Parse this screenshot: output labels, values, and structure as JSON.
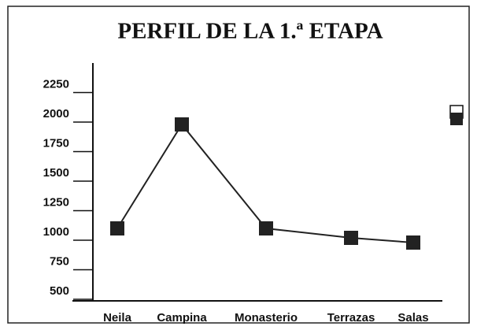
{
  "chart_data": {
    "type": "line",
    "title": "PERFIL DE LA 1.ª ETAPA",
    "categories": [
      "Neila",
      "Campina",
      "Monasterio",
      "Terrazas",
      "Salas"
    ],
    "series": [
      {
        "color": "#222222",
        "values": [
          1100,
          1980,
          1100,
          1020,
          980
        ]
      }
    ],
    "ylim": [
      500,
      2500
    ],
    "yticks": [
      500,
      750,
      1000,
      1250,
      1500,
      1750,
      2000,
      2250
    ]
  }
}
